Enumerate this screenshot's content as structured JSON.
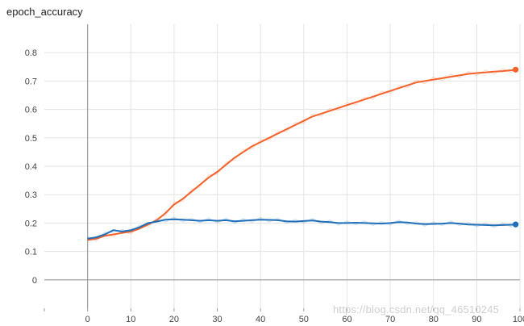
{
  "chart_data": {
    "type": "line",
    "title": "epoch_accuracy",
    "xlabel": "",
    "ylabel": "",
    "xlim": [
      -10,
      100
    ],
    "ylim": [
      -0.1,
      0.9
    ],
    "x_ticks": [
      0,
      10,
      20,
      30,
      40,
      50,
      60,
      70,
      80,
      90,
      100
    ],
    "y_ticks": [
      0,
      0.1,
      0.2,
      0.3,
      0.4,
      0.5,
      0.6,
      0.7,
      0.8
    ],
    "grid": true,
    "legend": "none",
    "series": [
      {
        "color": "#f4622a",
        "x": [
          0,
          2,
          4,
          6,
          8,
          10,
          12,
          14,
          16,
          18,
          20,
          22,
          24,
          26,
          28,
          30,
          32,
          34,
          36,
          38,
          40,
          42,
          44,
          46,
          48,
          50,
          52,
          54,
          56,
          58,
          60,
          62,
          64,
          66,
          68,
          70,
          72,
          74,
          76,
          78,
          80,
          82,
          84,
          86,
          88,
          90,
          92,
          94,
          96,
          98,
          99
        ],
        "values": [
          0.14,
          0.145,
          0.155,
          0.16,
          0.165,
          0.17,
          0.18,
          0.195,
          0.21,
          0.235,
          0.265,
          0.285,
          0.31,
          0.335,
          0.36,
          0.38,
          0.405,
          0.43,
          0.45,
          0.47,
          0.485,
          0.5,
          0.515,
          0.53,
          0.545,
          0.56,
          0.575,
          0.585,
          0.595,
          0.605,
          0.615,
          0.625,
          0.635,
          0.645,
          0.655,
          0.665,
          0.675,
          0.685,
          0.695,
          0.7,
          0.705,
          0.71,
          0.715,
          0.72,
          0.725,
          0.728,
          0.73,
          0.733,
          0.735,
          0.738,
          0.74
        ]
      },
      {
        "color": "#1f6fb8",
        "x": [
          0,
          2,
          4,
          6,
          8,
          10,
          12,
          14,
          16,
          18,
          20,
          22,
          24,
          26,
          28,
          30,
          32,
          34,
          36,
          38,
          40,
          42,
          44,
          46,
          48,
          50,
          52,
          54,
          56,
          58,
          60,
          62,
          64,
          66,
          68,
          70,
          72,
          74,
          76,
          78,
          80,
          82,
          84,
          86,
          88,
          90,
          92,
          94,
          96,
          98,
          99
        ],
        "values": [
          0.145,
          0.15,
          0.16,
          0.175,
          0.17,
          0.175,
          0.185,
          0.2,
          0.205,
          0.212,
          0.213,
          0.212,
          0.21,
          0.208,
          0.21,
          0.208,
          0.21,
          0.206,
          0.208,
          0.21,
          0.212,
          0.211,
          0.21,
          0.206,
          0.205,
          0.207,
          0.209,
          0.205,
          0.203,
          0.2,
          0.2,
          0.201,
          0.2,
          0.199,
          0.198,
          0.2,
          0.203,
          0.202,
          0.198,
          0.196,
          0.197,
          0.198,
          0.2,
          0.198,
          0.195,
          0.194,
          0.193,
          0.192,
          0.193,
          0.194,
          0.195
        ]
      }
    ]
  },
  "watermark": "https://blog.csdn.net/qq_46510245"
}
